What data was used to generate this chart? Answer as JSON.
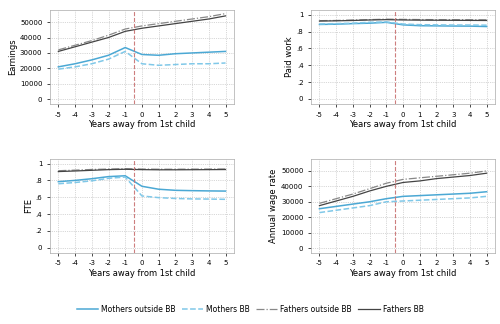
{
  "x": [
    -5,
    -4,
    -3,
    -2,
    -1,
    0,
    1,
    2,
    3,
    4,
    5
  ],
  "earnings": {
    "mothers_outside_bb": [
      21000,
      23000,
      25500,
      28500,
      33500,
      29000,
      28500,
      29500,
      30000,
      30500,
      31000
    ],
    "mothers_bb": [
      19500,
      21000,
      23000,
      26000,
      31000,
      23000,
      22000,
      22500,
      23000,
      23000,
      23500
    ],
    "fathers_outside_bb": [
      32000,
      35000,
      38000,
      41500,
      45500,
      47500,
      49000,
      50500,
      52000,
      53500,
      55500
    ],
    "fathers_bb": [
      31000,
      34000,
      37000,
      40000,
      44000,
      46000,
      47500,
      49000,
      50500,
      52000,
      54000
    ]
  },
  "paid_work": {
    "mothers_outside_bb": [
      0.885,
      0.888,
      0.895,
      0.9,
      0.91,
      0.88,
      0.87,
      0.868,
      0.866,
      0.865,
      0.86
    ],
    "mothers_bb": [
      0.89,
      0.895,
      0.9,
      0.91,
      0.915,
      0.89,
      0.882,
      0.88,
      0.878,
      0.878,
      0.876
    ],
    "fathers_outside_bb": [
      0.93,
      0.932,
      0.938,
      0.942,
      0.948,
      0.945,
      0.943,
      0.942,
      0.942,
      0.941,
      0.94
    ],
    "fathers_bb": [
      0.925,
      0.928,
      0.932,
      0.938,
      0.942,
      0.938,
      0.936,
      0.935,
      0.934,
      0.933,
      0.932
    ]
  },
  "fte": {
    "mothers_outside_bb": [
      0.785,
      0.8,
      0.82,
      0.845,
      0.855,
      0.73,
      0.695,
      0.682,
      0.678,
      0.675,
      0.673
    ],
    "mothers_bb": [
      0.76,
      0.775,
      0.795,
      0.825,
      0.84,
      0.615,
      0.595,
      0.585,
      0.58,
      0.578,
      0.575
    ],
    "fathers_outside_bb": [
      0.915,
      0.922,
      0.93,
      0.935,
      0.94,
      0.935,
      0.933,
      0.933,
      0.934,
      0.935,
      0.936
    ],
    "fathers_bb": [
      0.905,
      0.912,
      0.92,
      0.928,
      0.932,
      0.928,
      0.926,
      0.926,
      0.927,
      0.928,
      0.929
    ]
  },
  "annual_wage": {
    "mothers_outside_bb": [
      25500,
      27000,
      28500,
      30000,
      32000,
      33500,
      34000,
      34500,
      35000,
      35500,
      36500
    ],
    "mothers_bb": [
      23000,
      24500,
      26000,
      27500,
      30000,
      30500,
      31000,
      31500,
      32000,
      32500,
      33500
    ],
    "fathers_outside_bb": [
      29000,
      32000,
      35000,
      38500,
      42000,
      44500,
      45500,
      46500,
      47500,
      48500,
      50000
    ],
    "fathers_bb": [
      27500,
      30500,
      33500,
      37000,
      40000,
      42500,
      43500,
      45000,
      46000,
      47000,
      48500
    ]
  },
  "colors": {
    "mothers_outside_bb": "#4ba8d4",
    "mothers_bb": "#80c8e8",
    "fathers_outside_bb": "#888888",
    "fathers_bb": "#444444"
  },
  "vline_x": -0.5,
  "xlabel": "Years away from 1st child",
  "yticks_earnings": [
    0,
    10000,
    20000,
    30000,
    40000,
    50000
  ],
  "yticks_paid_work": [
    0,
    0.2,
    0.4,
    0.6,
    0.8,
    1.0
  ],
  "yticks_fte": [
    0,
    0.2,
    0.4,
    0.6,
    0.8,
    1.0
  ],
  "yticks_annual_wage": [
    0,
    10000,
    20000,
    30000,
    40000,
    50000
  ],
  "legend_labels": [
    "Mothers outside BB",
    "Mothers BB",
    "Fathers outside BB",
    "Fathers BB"
  ]
}
